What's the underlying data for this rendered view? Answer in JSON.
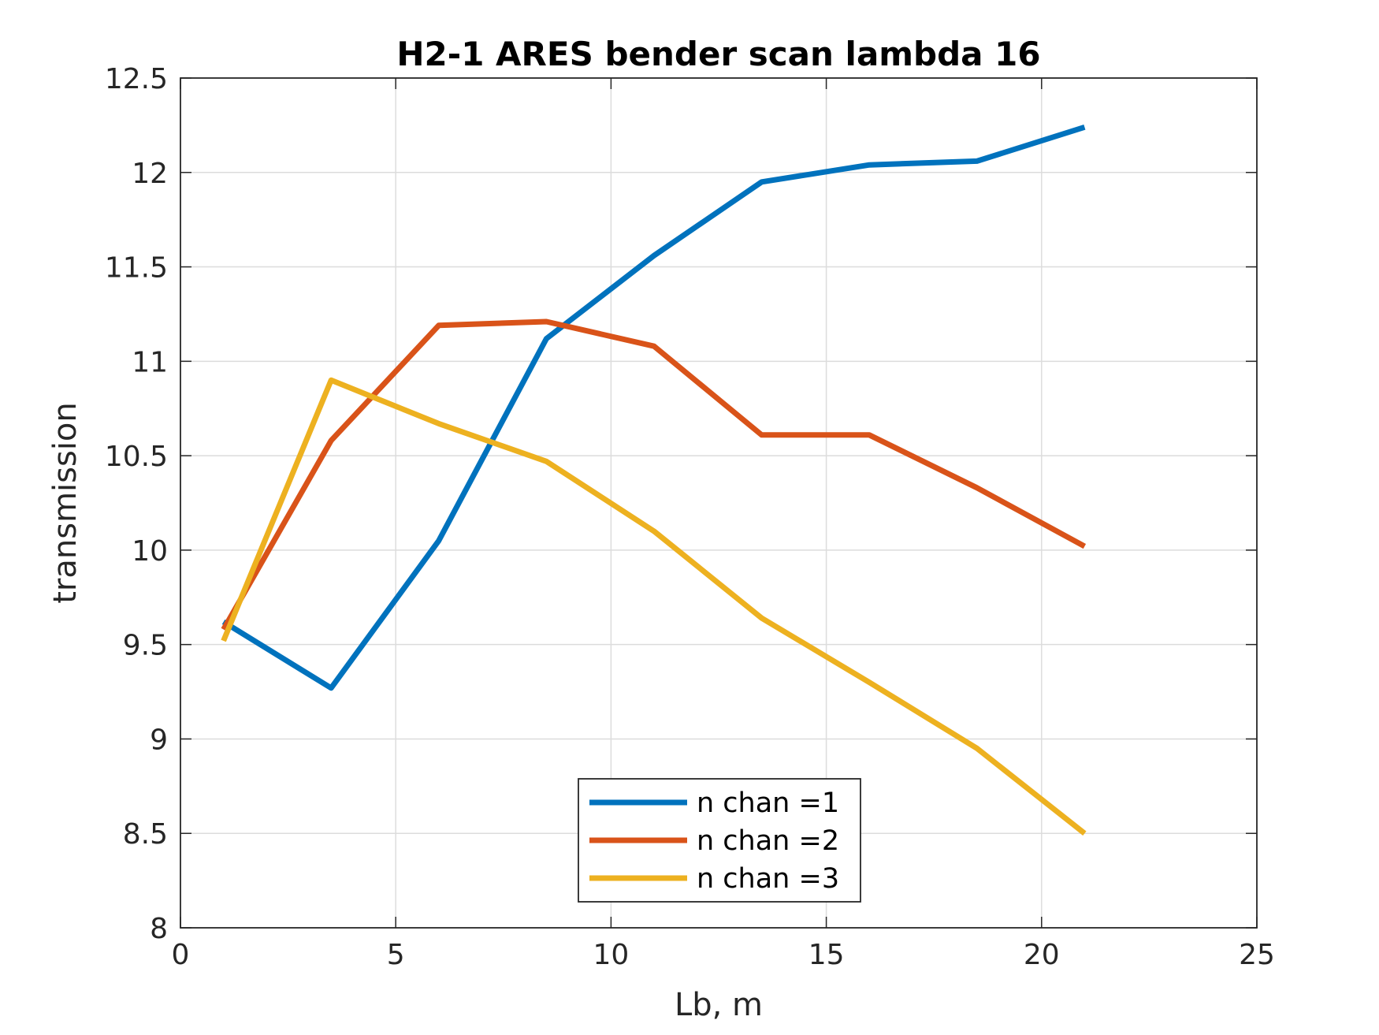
{
  "chart_data": {
    "type": "line",
    "title": "H2-1 ARES bender scan lambda 16",
    "xlabel": "Lb, m",
    "ylabel": "transmission",
    "xlim": [
      0,
      25
    ],
    "ylim": [
      8,
      12.5
    ],
    "xticks": [
      0,
      5,
      10,
      15,
      20,
      25
    ],
    "yticks": [
      8,
      8.5,
      9,
      9.5,
      10,
      10.5,
      11,
      11.5,
      12,
      12.5
    ],
    "xtick_labels": [
      "0",
      "5",
      "10",
      "15",
      "20",
      "25"
    ],
    "ytick_labels": [
      "8",
      "8.5",
      "9",
      "9.5",
      "10",
      "10.5",
      "11",
      "11.5",
      "12",
      "12.5"
    ],
    "grid": true,
    "legend_position": "bottom-center",
    "x": [
      1,
      3.5,
      6,
      8.5,
      11,
      13.5,
      16,
      18.5,
      21
    ],
    "series": [
      {
        "name": "n chan =1",
        "color": "#0072BD",
        "values": [
          9.62,
          9.27,
          10.05,
          11.12,
          11.56,
          11.95,
          12.04,
          12.06,
          12.24
        ]
      },
      {
        "name": "n chan =2",
        "color": "#D95319",
        "values": [
          9.58,
          10.58,
          11.19,
          11.21,
          11.08,
          10.61,
          10.61,
          10.33,
          10.02
        ]
      },
      {
        "name": "n chan =3",
        "color": "#EDB120",
        "values": [
          9.52,
          10.9,
          10.67,
          10.47,
          10.1,
          9.64,
          9.3,
          8.95,
          8.5
        ]
      }
    ]
  }
}
